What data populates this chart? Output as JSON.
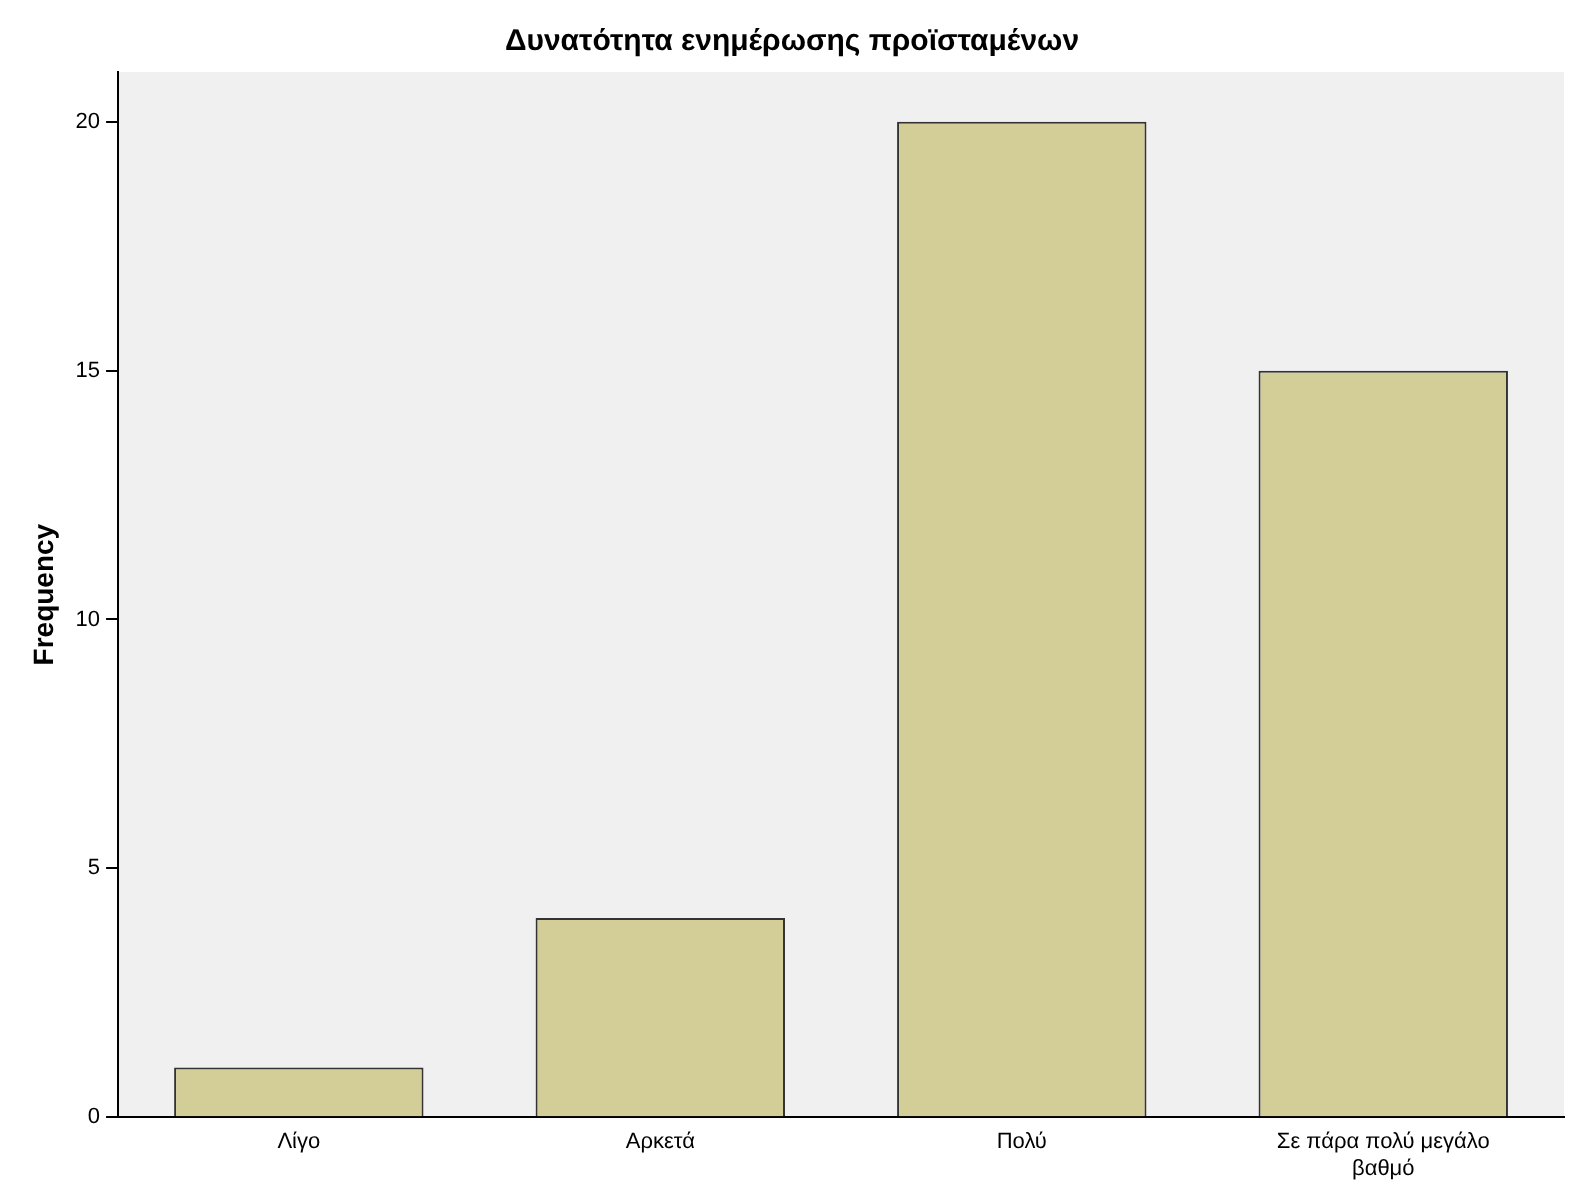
{
  "chart_data": {
    "type": "bar",
    "title": "Δυνατότητα ενημέρωσης προϊσταμένων",
    "ylabel": "Frequency",
    "categories": [
      "Λίγο",
      "Αρκετά",
      "Πολύ",
      "Σε πάρα πολύ μεγάλο βαθμό"
    ],
    "values": [
      1,
      4,
      20,
      15
    ],
    "color": "#d3ce97",
    "ylim": [
      0,
      21
    ],
    "yticks": [
      0,
      5,
      10,
      15,
      20
    ],
    "grid": false,
    "legend": false
  }
}
